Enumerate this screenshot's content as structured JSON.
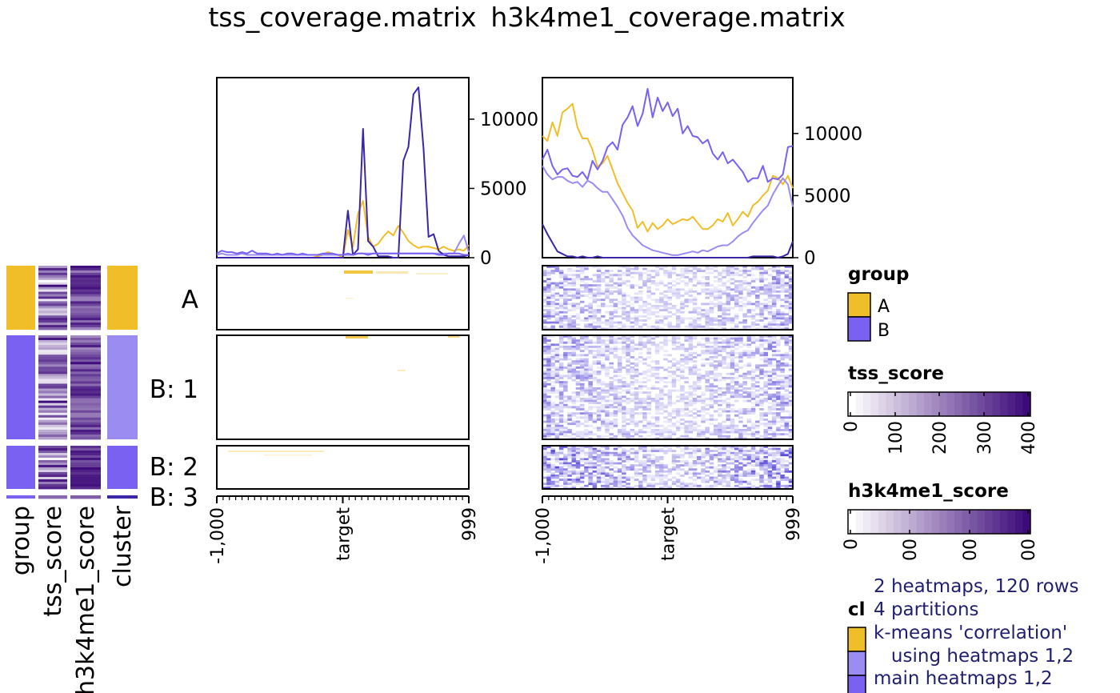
{
  "titles": {
    "left": "tss_coverage.matrix",
    "right": "h3k4me1_coverage.matrix"
  },
  "row_slices": [
    {
      "key": "A",
      "label": "A",
      "group": "A",
      "cluster": "A"
    },
    {
      "key": "B1",
      "label": "B: 1",
      "group": "B",
      "cluster": "B1"
    },
    {
      "key": "B2",
      "label": "B: 2",
      "group": "B",
      "cluster": "B2"
    },
    {
      "key": "B3",
      "label": "B: 3",
      "group": "B",
      "cluster": "B3"
    }
  ],
  "annotation_columns": [
    {
      "key": "group",
      "label": "group"
    },
    {
      "key": "tss_score",
      "label": "tss_score"
    },
    {
      "key": "h3k4me1_score",
      "label": "h3k4me1_score"
    },
    {
      "key": "cluster",
      "label": "cluster"
    }
  ],
  "colors": {
    "A": "#f0be29",
    "B": "#7b61f2",
    "B1": "#9b8cf2",
    "B2": "#7b61f2",
    "B3": "#3a27a8",
    "score_low": "#ffffff",
    "score_high": "#3d0a7a",
    "frame": "#000000"
  },
  "legend": {
    "group": {
      "title": "group",
      "items": [
        {
          "label": "A",
          "color": "#f0be29"
        },
        {
          "label": "B",
          "color": "#7b61f2"
        }
      ]
    },
    "tss_score": {
      "title": "tss_score",
      "ticks": [
        "0",
        "100",
        "200",
        "300",
        "400"
      ]
    },
    "h3k4me1_score": {
      "title": "h3k4me1_score",
      "ticks": [
        "0",
        "00",
        "00",
        "00"
      ]
    },
    "cluster": {
      "title": "cl"
    }
  },
  "notes": [
    "2 heatmaps, 120 rows",
    "4 partitions",
    "k-means 'correlation'",
    "   using heatmaps 1,2",
    "main heatmaps 1,2"
  ],
  "x_axis": {
    "ticks": [
      "-1,000",
      "target",
      "999"
    ]
  },
  "chart_data": [
    {
      "type": "line",
      "title": "tss_coverage.matrix",
      "x_ticks": [
        "-1,000",
        "target",
        "999"
      ],
      "ylim": [
        0,
        13000
      ],
      "yticks": [
        0,
        5000,
        10000
      ],
      "ytick_labels": [
        "0",
        "5000",
        "10000"
      ],
      "grid": false,
      "x": [
        -1000,
        -960,
        -920,
        -880,
        -840,
        -800,
        -760,
        -720,
        -680,
        -640,
        -600,
        -560,
        -520,
        -480,
        -440,
        -400,
        -360,
        -320,
        -280,
        -240,
        -200,
        -160,
        -120,
        -80,
        -40,
        0,
        40,
        80,
        120,
        160,
        200,
        240,
        280,
        320,
        360,
        400,
        440,
        480,
        520,
        560,
        600,
        640,
        680,
        720,
        760,
        800,
        840,
        880,
        920,
        960,
        999
      ],
      "series": [
        {
          "color": "#f0be29",
          "values": [
            0,
            0,
            0,
            0,
            0,
            0,
            0,
            0,
            0,
            0,
            0,
            0,
            0,
            0,
            0,
            0,
            0,
            0,
            0,
            0,
            100,
            200,
            400,
            300,
            200,
            0,
            2000,
            800,
            3200,
            4100,
            1500,
            800,
            1000,
            1500,
            1900,
            1600,
            2300,
            1800,
            1200,
            900,
            700,
            800,
            800,
            700,
            600,
            800,
            600,
            500,
            600,
            500,
            900
          ]
        },
        {
          "color": "#9b8cf2",
          "values": [
            200,
            300,
            200,
            200,
            200,
            300,
            200,
            200,
            200,
            200,
            200,
            200,
            200,
            200,
            200,
            200,
            200,
            200,
            200,
            200,
            200,
            200,
            200,
            200,
            200,
            200,
            200,
            200,
            300,
            300,
            300,
            300,
            300,
            300,
            300,
            300,
            300,
            300,
            300,
            300,
            300,
            300,
            300,
            300,
            300,
            300,
            300,
            300,
            1000,
            1600,
            400
          ]
        },
        {
          "color": "#3a27a8",
          "values": [
            0,
            0,
            0,
            0,
            0,
            0,
            0,
            0,
            0,
            0,
            0,
            0,
            0,
            0,
            0,
            0,
            0,
            0,
            0,
            0,
            0,
            0,
            0,
            0,
            0,
            0,
            3400,
            200,
            600,
            9300,
            1200,
            800,
            100,
            100,
            100,
            0,
            0,
            7000,
            8000,
            11800,
            12300,
            7900,
            1500,
            1700,
            500,
            200,
            100,
            100,
            100,
            100,
            200
          ]
        },
        {
          "color": "#7b61f2",
          "values": [
            300,
            500,
            400,
            400,
            300,
            400,
            300,
            500,
            300,
            300,
            300,
            200,
            300,
            200,
            300,
            300,
            200,
            300,
            200,
            200,
            200,
            300,
            300,
            300,
            200,
            200,
            300,
            200,
            300,
            300,
            200,
            300,
            300,
            300,
            300,
            300,
            300,
            300,
            300,
            300,
            300,
            300,
            300,
            300,
            200,
            200,
            300,
            300,
            300,
            200,
            200
          ]
        }
      ]
    },
    {
      "type": "line",
      "title": "h3k4me1_coverage.matrix",
      "x_ticks": [
        "-1,000",
        "target",
        "999"
      ],
      "ylim": [
        0,
        14500
      ],
      "yticks": [
        0,
        5000,
        10000
      ],
      "ytick_labels": [
        "0",
        "5000",
        "10000"
      ],
      "grid": false,
      "x": [
        -1000,
        -960,
        -920,
        -880,
        -840,
        -800,
        -760,
        -720,
        -680,
        -640,
        -600,
        -560,
        -520,
        -480,
        -440,
        -400,
        -360,
        -320,
        -280,
        -240,
        -200,
        -160,
        -120,
        -80,
        -40,
        0,
        40,
        80,
        120,
        160,
        200,
        240,
        280,
        320,
        360,
        400,
        440,
        480,
        520,
        560,
        600,
        640,
        680,
        720,
        760,
        800,
        840,
        880,
        920,
        960,
        999
      ],
      "series": [
        {
          "color": "#f0be29",
          "values": [
            9800,
            9400,
            10900,
            9800,
            11700,
            12000,
            12400,
            10500,
            9600,
            9600,
            8700,
            7300,
            7600,
            8200,
            7100,
            6000,
            5200,
            4400,
            3800,
            2400,
            2900,
            2100,
            2800,
            2300,
            2600,
            3100,
            2700,
            2900,
            3100,
            3000,
            3300,
            2800,
            2300,
            2300,
            2600,
            3100,
            2900,
            3600,
            2600,
            3100,
            3700,
            3300,
            4200,
            4500,
            5000,
            5400,
            6600,
            6400,
            5900,
            6600,
            5600
          ]
        },
        {
          "color": "#9b8cf2",
          "values": [
            7400,
            6700,
            6300,
            6500,
            6500,
            6200,
            6000,
            6100,
            5700,
            6200,
            6000,
            5600,
            5300,
            5300,
            4700,
            4100,
            3400,
            2400,
            1800,
            1400,
            1000,
            800,
            600,
            500,
            400,
            300,
            200,
            200,
            300,
            400,
            500,
            400,
            600,
            500,
            700,
            900,
            1000,
            1000,
            1300,
            1700,
            2000,
            2200,
            2800,
            3300,
            3800,
            4200,
            5100,
            5800,
            6400,
            5900,
            4100
          ]
        },
        {
          "color": "#7b61f2",
          "values": [
            7900,
            8700,
            7400,
            6700,
            7100,
            7200,
            6600,
            6500,
            6900,
            6300,
            7800,
            7100,
            7800,
            8900,
            9300,
            8700,
            10700,
            11300,
            12200,
            10600,
            11600,
            13600,
            11300,
            12900,
            11800,
            12500,
            11400,
            12000,
            10000,
            10600,
            9800,
            9700,
            9200,
            9500,
            8400,
            7900,
            8500,
            7600,
            7900,
            7400,
            6900,
            6100,
            6400,
            6400,
            7400,
            6100,
            6400,
            6300,
            6700,
            8900,
            9000
          ]
        },
        {
          "color": "#3a27a8",
          "values": [
            2700,
            1900,
            1200,
            500,
            300,
            100,
            100,
            0,
            100,
            0,
            0,
            100,
            0,
            0,
            0,
            0,
            0,
            0,
            0,
            0,
            0,
            0,
            0,
            0,
            0,
            0,
            0,
            0,
            0,
            0,
            0,
            0,
            0,
            0,
            0,
            0,
            0,
            0,
            0,
            0,
            0,
            0,
            100,
            100,
            100,
            100,
            100,
            0,
            100,
            300,
            1300
          ]
        }
      ]
    }
  ]
}
